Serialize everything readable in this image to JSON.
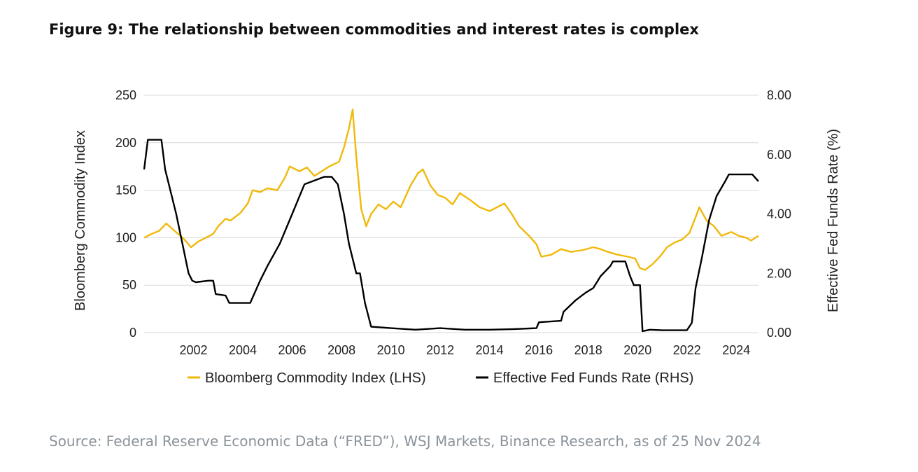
{
  "title": "Figure 9: The relationship between commodities and interest rates is complex",
  "source": "Source: Federal Reserve Economic Data (“FRED”), WSJ Markets, Binance Research, as of 25 Nov 2024",
  "colors": {
    "commodity": "#F0B90B",
    "fedfunds": "#000000",
    "grid": "#d9d9d9"
  },
  "chart_data": {
    "type": "line",
    "xlabel": "",
    "ylabel_left": "Bloomberg Commodity Index",
    "ylabel_right": "Effective Fed Funds Rate (%)",
    "xlim": [
      2000.0,
      2024.9
    ],
    "ylim_left": [
      0,
      250
    ],
    "ylim_right": [
      0,
      8
    ],
    "x_ticks": [
      "2002",
      "2004",
      "2006",
      "2008",
      "2010",
      "2012",
      "2014",
      "2016",
      "2018",
      "2020",
      "2022",
      "2024"
    ],
    "y_ticks_left": [
      "0",
      "50",
      "100",
      "150",
      "200",
      "250"
    ],
    "y_ticks_right": [
      "0.00",
      "2.00",
      "4.00",
      "6.00",
      "8.00"
    ],
    "grid": true,
    "legend_position": "bottom",
    "series": [
      {
        "name": "Bloomberg Commodity Index (LHS)",
        "axis": "left",
        "x": [
          2000.0,
          2000.3,
          2000.6,
          2000.9,
          2001.2,
          2001.6,
          2001.9,
          2002.2,
          2002.5,
          2002.8,
          2003.0,
          2003.3,
          2003.5,
          2003.9,
          2004.2,
          2004.4,
          2004.7,
          2005.0,
          2005.4,
          2005.7,
          2005.9,
          2006.3,
          2006.6,
          2006.9,
          2007.2,
          2007.5,
          2007.9,
          2008.1,
          2008.3,
          2008.45,
          2008.6,
          2008.8,
          2009.0,
          2009.2,
          2009.5,
          2009.8,
          2010.1,
          2010.4,
          2010.8,
          2011.1,
          2011.3,
          2011.6,
          2011.9,
          2012.2,
          2012.5,
          2012.8,
          2013.2,
          2013.6,
          2014.0,
          2014.3,
          2014.6,
          2014.9,
          2015.2,
          2015.6,
          2015.9,
          2016.1,
          2016.5,
          2016.9,
          2017.3,
          2017.8,
          2018.2,
          2018.5,
          2018.8,
          2019.2,
          2019.6,
          2019.9,
          2020.1,
          2020.3,
          2020.6,
          2020.9,
          2021.2,
          2021.5,
          2021.8,
          2022.1,
          2022.3,
          2022.5,
          2022.8,
          2023.1,
          2023.4,
          2023.8,
          2024.1,
          2024.4,
          2024.6,
          2024.9
        ],
        "values": [
          100,
          104,
          107,
          115,
          108,
          99,
          90,
          96,
          100,
          104,
          112,
          120,
          118,
          126,
          136,
          150,
          148,
          152,
          150,
          163,
          175,
          170,
          174,
          165,
          170,
          175,
          180,
          195,
          215,
          235,
          185,
          130,
          112,
          125,
          135,
          130,
          138,
          132,
          155,
          168,
          172,
          155,
          145,
          142,
          135,
          147,
          140,
          132,
          128,
          132,
          136,
          125,
          112,
          102,
          93,
          80,
          82,
          88,
          85,
          87,
          90,
          88,
          85,
          82,
          80,
          78,
          68,
          66,
          72,
          80,
          90,
          95,
          98,
          105,
          118,
          132,
          118,
          112,
          102,
          106,
          102,
          100,
          97,
          102
        ]
      },
      {
        "name": "Effective Fed Funds Rate (RHS)",
        "axis": "right",
        "x": [
          2000.0,
          2000.15,
          2000.35,
          2000.7,
          2000.85,
          2001.0,
          2001.3,
          2001.55,
          2001.8,
          2001.95,
          2002.1,
          2002.6,
          2002.8,
          2002.9,
          2003.3,
          2003.45,
          2003.7,
          2004.0,
          2004.3,
          2004.7,
          2005.0,
          2005.5,
          2006.0,
          2006.5,
          2007.3,
          2007.6,
          2007.85,
          2008.1,
          2008.3,
          2008.6,
          2008.75,
          2008.95,
          2009.2,
          2010.0,
          2011.0,
          2012.0,
          2013.0,
          2014.0,
          2015.0,
          2015.9,
          2016.0,
          2016.9,
          2017.0,
          2017.5,
          2017.9,
          2018.2,
          2018.5,
          2018.9,
          2019.0,
          2019.5,
          2019.7,
          2019.85,
          2020.1,
          2020.2,
          2020.5,
          2021.0,
          2022.0,
          2022.2,
          2022.35,
          2022.6,
          2022.9,
          2023.2,
          2023.55,
          2023.7,
          2024.0,
          2024.65,
          2024.9
        ],
        "values": [
          5.5,
          6.5,
          6.5,
          6.5,
          5.5,
          5.0,
          4.0,
          3.0,
          2.0,
          1.75,
          1.7,
          1.75,
          1.75,
          1.3,
          1.25,
          1.0,
          1.0,
          1.0,
          1.0,
          1.75,
          2.25,
          3.0,
          4.0,
          5.0,
          5.25,
          5.25,
          5.0,
          4.0,
          3.0,
          2.0,
          2.0,
          1.0,
          0.2,
          0.15,
          0.1,
          0.15,
          0.1,
          0.1,
          0.12,
          0.15,
          0.35,
          0.4,
          0.7,
          1.1,
          1.35,
          1.5,
          1.9,
          2.25,
          2.4,
          2.4,
          1.9,
          1.6,
          1.6,
          0.05,
          0.1,
          0.08,
          0.08,
          0.33,
          1.5,
          2.5,
          3.8,
          4.6,
          5.1,
          5.33,
          5.33,
          5.33,
          5.1
        ]
      }
    ]
  }
}
